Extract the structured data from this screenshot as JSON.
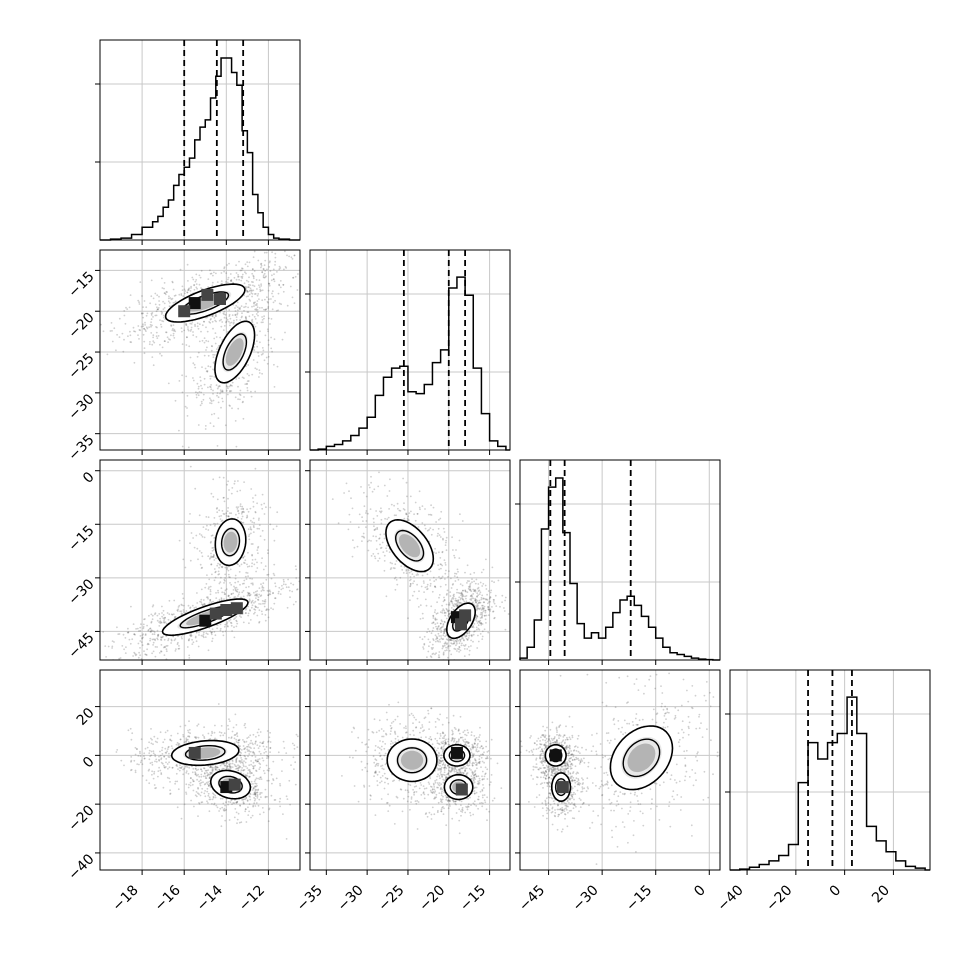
{
  "chart_data": {
    "type": "corner",
    "title": "",
    "grid": true,
    "parameters": [
      {
        "index": 0,
        "range": [
          -20,
          -10.5
        ],
        "ticks": [
          -18,
          -16,
          -14,
          -12
        ],
        "tick_labels": [
          "−18",
          "−16",
          "−14",
          "−12"
        ],
        "histogram": {
          "bin_edges": [
            -20.0,
            -19.5,
            -19.0,
            -18.5,
            -18.0,
            -17.5,
            -17.25,
            -17.0,
            -16.75,
            -16.5,
            -16.25,
            -16.0,
            -15.75,
            -15.5,
            -15.25,
            -15.0,
            -14.75,
            -14.5,
            -14.25,
            -14.0,
            -13.75,
            -13.5,
            -13.25,
            -13.0,
            -12.75,
            -12.5,
            -12.25,
            -12.0,
            -11.75,
            -11.5,
            -11.0,
            -10.5
          ],
          "counts": [
            0.0,
            0.005,
            0.01,
            0.03,
            0.07,
            0.1,
            0.13,
            0.18,
            0.22,
            0.3,
            0.36,
            0.4,
            0.45,
            0.55,
            0.62,
            0.66,
            0.78,
            0.9,
            1.0,
            1.0,
            0.92,
            0.85,
            0.6,
            0.48,
            0.25,
            0.15,
            0.07,
            0.03,
            0.01,
            0.005,
            0.0
          ]
        },
        "quantiles": [
          -16.0,
          -14.45,
          -13.2
        ]
      },
      {
        "index": 1,
        "range": [
          -37,
          -12.5
        ],
        "ticks": [
          -35,
          -30,
          -25,
          -20,
          -15
        ],
        "tick_labels": [
          "−35",
          "−30",
          "−25",
          "−20",
          "−15"
        ],
        "histogram": {
          "bin_edges": [
            -37.0,
            -36.0,
            -35.0,
            -34.0,
            -33.0,
            -32.0,
            -31.0,
            -30.0,
            -29.0,
            -28.0,
            -27.0,
            -26.0,
            -25.0,
            -24.0,
            -23.0,
            -22.0,
            -21.0,
            -20.0,
            -19.0,
            -18.0,
            -17.0,
            -16.0,
            -15.0,
            -14.0,
            -13.0,
            -12.5
          ],
          "counts": [
            0.0,
            0.005,
            0.02,
            0.03,
            0.05,
            0.08,
            0.12,
            0.18,
            0.3,
            0.4,
            0.45,
            0.46,
            0.32,
            0.31,
            0.36,
            0.48,
            0.55,
            0.89,
            0.95,
            0.85,
            0.45,
            0.2,
            0.05,
            0.02,
            0.0
          ]
        },
        "quantiles": [
          -25.5,
          -20.0,
          -18.0
        ]
      },
      {
        "index": 2,
        "range": [
          -53,
          3
        ],
        "ticks": [
          -45,
          -30,
          -15,
          0
        ],
        "tick_labels": [
          "−45",
          "−30",
          "−15",
          "0"
        ],
        "histogram": {
          "bin_edges": [
            -53.0,
            -51.0,
            -49.0,
            -47.0,
            -45.0,
            -43.0,
            -41.0,
            -39.0,
            -37.0,
            -35.0,
            -33.0,
            -31.0,
            -29.0,
            -27.0,
            -25.0,
            -23.0,
            -21.0,
            -19.0,
            -17.0,
            -15.0,
            -13.0,
            -11.0,
            -9.0,
            -7.0,
            -5.0,
            -3.0,
            -1.0,
            1.0,
            3.0
          ],
          "counts": [
            0.01,
            0.07,
            0.22,
            0.72,
            0.95,
            1.0,
            0.7,
            0.42,
            0.2,
            0.12,
            0.15,
            0.12,
            0.18,
            0.26,
            0.33,
            0.35,
            0.3,
            0.24,
            0.18,
            0.12,
            0.07,
            0.04,
            0.03,
            0.02,
            0.01,
            0.005,
            0.002,
            0.0
          ]
        },
        "quantiles": [
          -44.5,
          -40.5,
          -22.0
        ]
      },
      {
        "index": 3,
        "range": [
          -47,
          35
        ],
        "ticks": [
          -40,
          -20,
          0,
          20
        ],
        "tick_labels": [
          "−40",
          "−20",
          "0",
          "20"
        ],
        "histogram": {
          "bin_edges": [
            -47.0,
            -43.0,
            -39.0,
            -35.0,
            -31.0,
            -27.0,
            -23.0,
            -19.0,
            -15.0,
            -11.0,
            -7.0,
            -3.0,
            1.0,
            5.0,
            9.0,
            13.0,
            17.0,
            21.0,
            25.0,
            29.0,
            33.0,
            35.0
          ],
          "counts": [
            0.0,
            0.005,
            0.015,
            0.03,
            0.05,
            0.08,
            0.14,
            0.48,
            0.7,
            0.61,
            0.7,
            0.75,
            0.95,
            0.75,
            0.24,
            0.16,
            0.1,
            0.05,
            0.02,
            0.01,
            0.0
          ]
        },
        "quantiles": [
          -15.0,
          -5.0,
          3.0
        ]
      }
    ],
    "histogram_ticks_fraction": [
      0.39,
      0.78
    ],
    "pairs": [
      {
        "x": 0,
        "y": 1,
        "y_ticks": [
          -35,
          -30,
          -25,
          -20,
          -15
        ],
        "y_tick_labels": [
          "−35",
          "−30",
          "−25",
          "−20",
          "−15"
        ],
        "clusters": [
          {
            "center": [
              -15.0,
              -19.0
            ],
            "sigma": [
              1.3,
              1.6
            ],
            "rho": 0.7,
            "weight": 0.6
          },
          {
            "center": [
              -13.6,
              -25.0
            ],
            "sigma": [
              0.65,
              2.6
            ],
            "rho": 0.55,
            "weight": 0.4
          }
        ],
        "dense_cells": [
          [
            -15.5,
            -19.0
          ],
          [
            -14.9,
            -18.0
          ],
          [
            -14.3,
            -18.5
          ],
          [
            -16.0,
            -20.0
          ]
        ],
        "contour_levels": [
          1,
          2
        ]
      },
      {
        "x": 0,
        "y": 2,
        "y_ticks": [
          -45,
          -30,
          -15,
          0
        ],
        "y_tick_labels": [
          "−45",
          "−30",
          "−15",
          "0"
        ],
        "clusters": [
          {
            "center": [
              -15.0,
              -41.0
            ],
            "sigma": [
              1.4,
              3.5
            ],
            "rho": 0.8,
            "weight": 0.65
          },
          {
            "center": [
              -13.8,
              -20.0
            ],
            "sigma": [
              0.5,
              4.5
            ],
            "rho": 0.1,
            "weight": 0.35
          }
        ],
        "dense_cells": [
          [
            -15.0,
            -42.0
          ],
          [
            -14.0,
            -39.0
          ],
          [
            -14.5,
            -40.0
          ],
          [
            -13.5,
            -38.5
          ]
        ],
        "contour_levels": [
          1,
          2
        ]
      },
      {
        "x": 1,
        "y": 2,
        "y_ticks": [
          -45,
          -30,
          -15,
          0
        ],
        "y_tick_labels": [
          "−45",
          "−30",
          "−15",
          "0"
        ],
        "clusters": [
          {
            "center": [
              -24.8,
              -21.0
            ],
            "sigma": [
              2.0,
              5.0
            ],
            "rho": -0.5,
            "weight": 0.35
          },
          {
            "center": [
              -18.5,
              -42.0
            ],
            "sigma": [
              1.2,
              3.4
            ],
            "rho": 0.5,
            "weight": 0.65
          }
        ],
        "dense_cells": [
          [
            -19.0,
            -41.0
          ],
          [
            -18.5,
            -43.0
          ],
          [
            -18.0,
            -40.5
          ]
        ],
        "contour_levels": [
          1,
          2
        ]
      },
      {
        "x": 0,
        "y": 3,
        "y_ticks": [
          -40,
          -20,
          0,
          20
        ],
        "y_tick_labels": [
          "−40",
          "−20",
          "0",
          "20"
        ],
        "clusters": [
          {
            "center": [
              -15.0,
              1.0
            ],
            "sigma": [
              1.1,
              3.5
            ],
            "rho": 0.2,
            "weight": 0.5
          },
          {
            "center": [
              -13.8,
              -12.0
            ],
            "sigma": [
              0.65,
              4.0
            ],
            "rho": -0.2,
            "weight": 0.5
          }
        ],
        "dense_cells": [
          [
            -14.0,
            -13.0
          ],
          [
            -13.6,
            -12.0
          ],
          [
            -15.5,
            1.0
          ]
        ],
        "contour_levels": [
          1,
          2
        ]
      },
      {
        "x": 1,
        "y": 3,
        "y_ticks": [
          -40,
          -20,
          0,
          20
        ],
        "y_tick_labels": [
          "−40",
          "−20",
          "0",
          "20"
        ],
        "clusters": [
          {
            "center": [
              -24.5,
              -2.0
            ],
            "sigma": [
              2.1,
              6.0
            ],
            "rho": 0.0,
            "weight": 0.35
          },
          {
            "center": [
              -19.0,
              0.0
            ],
            "sigma": [
              1.1,
              3.0
            ],
            "rho": 0.0,
            "weight": 0.35
          },
          {
            "center": [
              -18.8,
              -13.0
            ],
            "sigma": [
              1.2,
              3.5
            ],
            "rho": 0.0,
            "weight": 0.3
          }
        ],
        "dense_cells": [
          [
            -19.0,
            1.0
          ],
          [
            -18.4,
            -14.0
          ]
        ],
        "contour_levels": [
          1,
          2
        ]
      },
      {
        "x": 2,
        "y": 3,
        "y_ticks": [
          -40,
          -20,
          0,
          20
        ],
        "y_tick_labels": [
          "−40",
          "−20",
          "0",
          "20"
        ],
        "clusters": [
          {
            "center": [
              -43.0,
              0.0
            ],
            "sigma": [
              2.0,
              3.0
            ],
            "rho": 0.0,
            "weight": 0.35
          },
          {
            "center": [
              -41.5,
              -13.0
            ],
            "sigma": [
              1.8,
              4.0
            ],
            "rho": 0.0,
            "weight": 0.3
          },
          {
            "center": [
              -19.0,
              -1.0
            ],
            "sigma": [
              6.0,
              9.0
            ],
            "rho": 0.3,
            "weight": 0.35
          }
        ],
        "dense_cells": [
          [
            -43.0,
            0.0
          ],
          [
            -41.0,
            -13.0
          ]
        ],
        "contour_levels": [
          1,
          2
        ]
      }
    ]
  }
}
